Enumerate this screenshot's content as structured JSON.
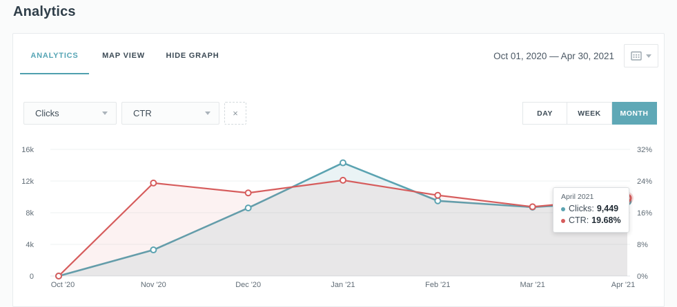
{
  "header": {
    "title": "Analytics"
  },
  "tabs": [
    {
      "label": "ANALYTICS",
      "active": true
    },
    {
      "label": "MAP VIEW",
      "active": false
    },
    {
      "label": "HIDE GRAPH",
      "active": false
    }
  ],
  "date_range": {
    "value": "Oct 01, 2020 — Apr 30, 2021"
  },
  "filters": {
    "metric_select_1": {
      "value": "Clicks"
    },
    "metric_select_2": {
      "value": "CTR"
    },
    "remove_button_label": "×"
  },
  "granularity": {
    "options": [
      "DAY",
      "WEEK",
      "MONTH"
    ],
    "selected": "MONTH"
  },
  "tooltip": {
    "title": "April 2021",
    "rows": [
      {
        "label": "Clicks:",
        "value": "9,449",
        "color": "#5ba3b1"
      },
      {
        "label": "CTR:",
        "value": "19.68%",
        "color": "#d65c5c"
      }
    ]
  },
  "colors": {
    "accent_teal": "#5fa8b6",
    "active_tab_teal": "#56a5b5",
    "series_clicks": "#5ba3b1",
    "series_ctr": "#d65c5c"
  },
  "chart_data": {
    "type": "line",
    "x": [
      "Oct '20",
      "Nov '20",
      "Dec '20",
      "Jan '21",
      "Feb '21",
      "Mar '21",
      "Apr '21"
    ],
    "series": [
      {
        "name": "Clicks",
        "axis": "left",
        "color": "#5ba3b1",
        "fill": "rgba(91,163,177,0.13)",
        "line_width": 2.6,
        "values": [
          0,
          3300,
          8600,
          14300,
          9500,
          8700,
          9449
        ]
      },
      {
        "name": "CTR",
        "axis": "right",
        "color": "#d65c5c",
        "fill": "rgba(214,92,92,0.08)",
        "line_width": 2.2,
        "values": [
          0,
          23.5,
          21.0,
          24.2,
          20.4,
          17.5,
          19.68
        ]
      }
    ],
    "left_axis": {
      "label_ticks": [
        "16k",
        "12k",
        "8k",
        "4k",
        "0"
      ],
      "min": 0,
      "max": 16000
    },
    "right_axis": {
      "label_ticks": [
        "32%",
        "24%",
        "16%",
        "8%",
        "0%"
      ],
      "min": 0,
      "max": 32
    },
    "grid": true,
    "legend": "none",
    "highlight": {
      "x_index": 6
    }
  }
}
